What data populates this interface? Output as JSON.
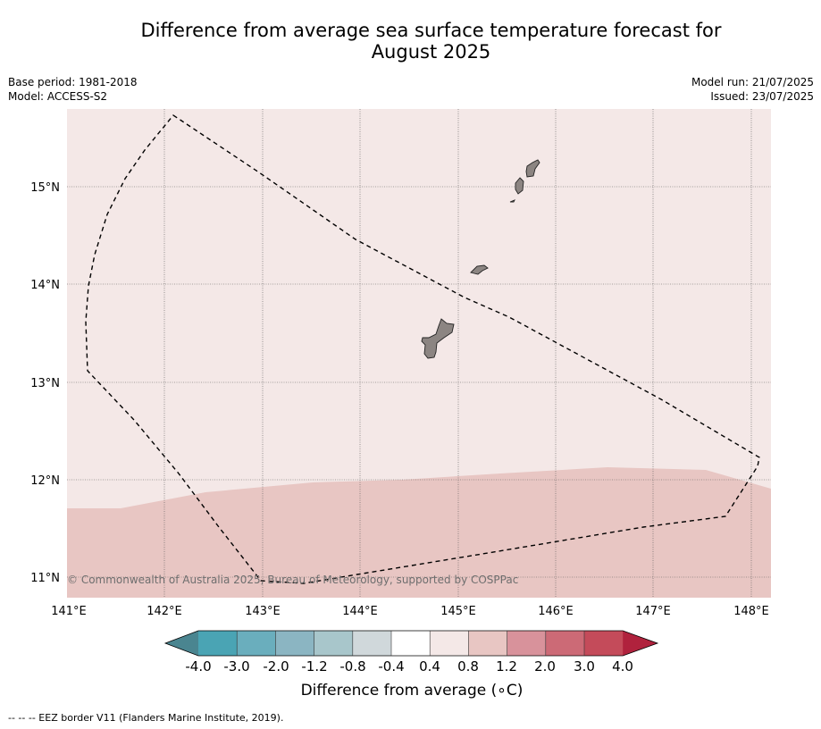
{
  "title_line1": "Difference from average sea surface temperature forecast for",
  "title_line2": "August 2025",
  "info_left": {
    "base_period": "Base period: 1981-2018",
    "model": "Model: ACCESS-S2"
  },
  "info_right": {
    "model_run": "Model run: 21/07/2025",
    "issued": "Issued: 23/07/2025"
  },
  "map": {
    "lon_ticks": [
      "141°E",
      "142°E",
      "143°E",
      "144°E",
      "145°E",
      "146°E",
      "147°E",
      "148°E"
    ],
    "lat_ticks": [
      "15°N",
      "14°N",
      "13°N",
      "12°N",
      "11°N"
    ],
    "copyright": "© Commonwealth of Australia 2025, Bureau of Meteorology, supported by COSPPac",
    "colors": {
      "anomaly_0_4_to_0_8": "#f4e8e7",
      "anomaly_0_8_to_1_2": "#e8c6c3",
      "land": "#8c8582",
      "eez": "#000000"
    }
  },
  "colorbar": {
    "labels": [
      "-4.0",
      "-3.0",
      "-2.0",
      "-1.2",
      "-0.8",
      "-0.4",
      "0.4",
      "0.8",
      "1.2",
      "2.0",
      "3.0",
      "4.0"
    ],
    "colors": [
      "#4a8590",
      "#4aa4b4",
      "#6aaebd",
      "#8bb5c2",
      "#a8c6cb",
      "#d0d8db",
      "#ffffff",
      "#f4e8e7",
      "#e8c6c3",
      "#d8929b",
      "#cc6a76",
      "#c44b5a",
      "#b0223d"
    ],
    "title": "Difference from average (∘C)"
  },
  "footnote": "--  --  -- EEZ border V11 (Flanders Marine Institute, 2019)."
}
